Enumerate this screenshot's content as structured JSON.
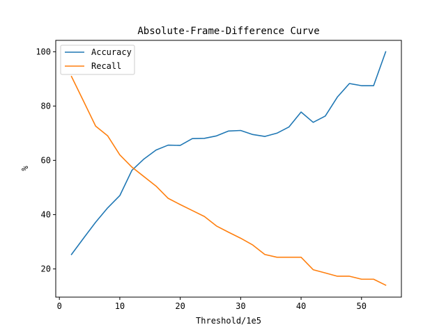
{
  "chart_data": {
    "type": "line",
    "title": "Absolute-Frame-Difference Curve",
    "xlabel": "Threshold/1e5",
    "ylabel": "%",
    "xlim": [
      -0.6,
      56.6
    ],
    "ylim": [
      9.6,
      104.2
    ],
    "xticks": [
      0,
      10,
      20,
      30,
      40,
      50
    ],
    "yticks": [
      20,
      40,
      60,
      80,
      100
    ],
    "grid": false,
    "legend_position": "top-left",
    "x": [
      2,
      4,
      6,
      8,
      10,
      12,
      14,
      16,
      18,
      20,
      22,
      24,
      26,
      28,
      30,
      32,
      34,
      36,
      38,
      40,
      42,
      44,
      46,
      48,
      50,
      52,
      54
    ],
    "series": [
      {
        "name": "Accuracy",
        "color": "#1f77b4",
        "values": [
          25.3,
          31.3,
          37.2,
          42.5,
          47.0,
          56.3,
          60.5,
          63.8,
          65.6,
          65.5,
          68.0,
          68.1,
          69.0,
          70.8,
          71.0,
          69.5,
          68.8,
          70.0,
          72.3,
          77.8,
          74.0,
          76.3,
          83.3,
          88.3,
          87.5,
          87.5,
          100.0
        ]
      },
      {
        "name": "Recall",
        "color": "#ff7f0e",
        "values": [
          90.9,
          81.8,
          72.6,
          69.0,
          62.0,
          57.5,
          54.0,
          50.5,
          46.0,
          43.7,
          41.5,
          39.3,
          35.8,
          33.5,
          31.3,
          28.8,
          25.3,
          24.3,
          24.3,
          24.3,
          19.7,
          18.5,
          17.3,
          17.3,
          16.2,
          16.2,
          14.0
        ]
      }
    ]
  }
}
